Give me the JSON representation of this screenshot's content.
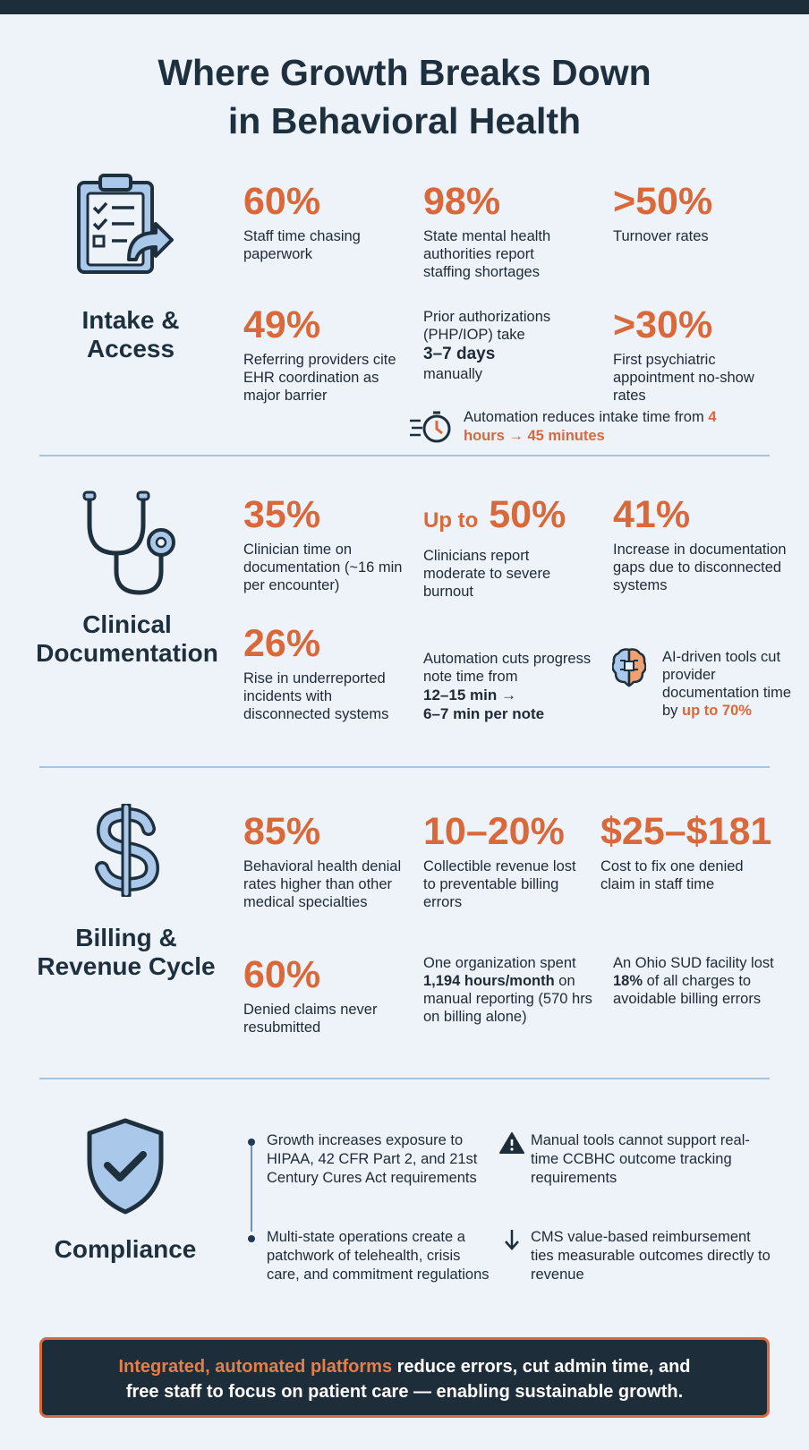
{
  "title": {
    "line1": "Where Growth Breaks Down",
    "line2": "in Behavioral Health"
  },
  "intake": {
    "label_line1": "Intake &",
    "label_line2": "Access",
    "icon": "clipboard-checklist-arrow-icon",
    "stats": [
      {
        "value": "60%",
        "desc": "Staff time chasing paperwork"
      },
      {
        "value": "98%",
        "desc": "State mental health authorities report staffing shortages"
      },
      {
        "value": ">50%",
        "desc": "Turnover rates"
      },
      {
        "value": "49%",
        "desc": "Referring providers cite EHR coordination as major barrier"
      },
      {
        "value": ">30%",
        "desc": "First psychiatric appointment no-show rates"
      }
    ],
    "prior_auth": {
      "line1": "Prior authorizations (PHP/IOP) take",
      "bold": "3–7 days",
      "line2": "manually"
    },
    "automation": {
      "text": "Automation reduces intake time from",
      "highlight": "4 hours → 45 minutes",
      "icon": "stopwatch-icon"
    }
  },
  "clinical": {
    "label_line1": "Clinical",
    "label_line2": "Documentation",
    "icon": "stethoscope-icon",
    "stats": [
      {
        "value": "35%",
        "desc": "Clinician time on documentation (~16 min per encounter)"
      },
      {
        "prefix": "Up to",
        "value": "50%",
        "desc": "Clinicians report moderate to severe burnout"
      },
      {
        "value": "41%",
        "desc": "Increase in documentation gaps due to disconnected systems"
      },
      {
        "value": "26%",
        "desc": "Rise in underreported incidents with disconnected systems"
      }
    ],
    "progress_note": {
      "line1": "Automation cuts progress note time from",
      "bold1": "12–15 min →",
      "bold2": "6–7 min per note"
    },
    "ai_tools": {
      "text": "AI-driven tools cut provider documentation time by",
      "highlight": "up to 70%",
      "icon": "brain-chip-icon"
    }
  },
  "billing": {
    "label_line1": "Billing &",
    "label_line2": "Revenue Cycle",
    "icon": "dollar-sign-icon",
    "stats": [
      {
        "value": "85%",
        "desc": "Behavioral health denial rates higher than other medical specialties"
      },
      {
        "value": "10–20%",
        "desc": "Collectible revenue lost to preventable billing errors"
      },
      {
        "value": "$25–$181",
        "desc": "Cost to fix one denied claim in staff time"
      },
      {
        "value": "60%",
        "desc": "Denied claims never resubmitted"
      }
    ],
    "org_hours": {
      "line1": "One organization spent",
      "bold": "1,194 hours/month",
      "line2": "on manual reporting (570 hrs on billing alone)"
    },
    "ohio": {
      "pre": "An Ohio SUD facility lost",
      "bold": "18%",
      "post": "of all charges to avoidable billing errors"
    }
  },
  "compliance": {
    "label": "Compliance",
    "icon": "shield-check-icon",
    "bullets": [
      "Growth increases exposure to HIPAA, 42 CFR Part 2, and 21st Century Cures Act requirements",
      "Multi-state operations create a patchwork of telehealth, crisis care, and commitment regulations"
    ],
    "warning": {
      "icon": "warning-triangle-icon",
      "text": "Manual tools cannot support real-time CCBHC outcome tracking requirements"
    },
    "cms": {
      "icon": "down-arrow-icon",
      "text": "CMS value-based reimbursement ties measurable outcomes directly to revenue"
    }
  },
  "banner": {
    "highlight": "Integrated, automated platforms",
    "rest1": " reduce errors, cut admin time, and",
    "line2": "free staff to focus on patient care — enabling sustainable growth."
  },
  "colors": {
    "accent": "#d9693a",
    "navy": "#1e2d3a",
    "icon_blue": "#a9c8ea",
    "background": "#eef3f9"
  }
}
